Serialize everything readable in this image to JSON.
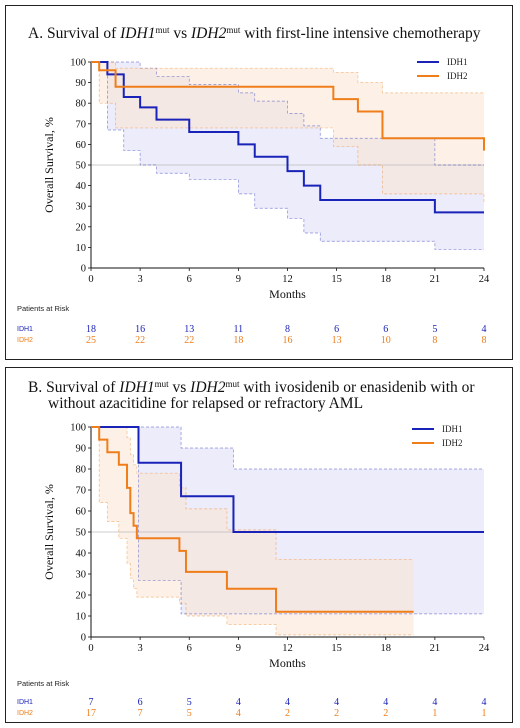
{
  "colors": {
    "idh1": "#1a23b8",
    "idh2": "#ee7d1a",
    "idh1_band": "#dcdcf5",
    "idh2_band": "#fbe6d4",
    "ref_line": "#bbbbbb"
  },
  "panels": [
    {
      "title_prefix": "A.  Survival of ",
      "title_gene1": "IDH1",
      "title_sup1": "mut",
      "title_mid": " vs ",
      "title_gene2": "IDH2",
      "title_sup2": "mut",
      "title_rest": " with first-line intensive chemotherapy",
      "title_line2": "",
      "risk_header": "Patients at Risk",
      "risk_rows": [
        {
          "name": "IDH1",
          "values": [
            "18",
            "16",
            "13",
            "11",
            "8",
            "6",
            "6",
            "5",
            "4"
          ]
        },
        {
          "name": "IDH2",
          "values": [
            "25",
            "22",
            "22",
            "18",
            "16",
            "13",
            "10",
            "8",
            "8"
          ]
        }
      ]
    },
    {
      "title_prefix": "B.   Survival of ",
      "title_gene1": "IDH1",
      "title_sup1": "mut",
      "title_mid": " vs ",
      "title_gene2": "IDH2",
      "title_sup2": "mut",
      "title_rest": " with ivosidenib or enasidenib with or",
      "title_line2": "without azacitidine for relapsed or refractory AML",
      "risk_header": "Patients at Risk",
      "risk_rows": [
        {
          "name": "IDH1",
          "values": [
            "7",
            "6",
            "5",
            "4",
            "4",
            "4",
            "4",
            "4",
            "4"
          ]
        },
        {
          "name": "IDH2",
          "values": [
            "17",
            "7",
            "5",
            "4",
            "2",
            "2",
            "2",
            "1",
            "1"
          ]
        }
      ]
    }
  ],
  "chart_data": [
    {
      "type": "line",
      "xlabel": "Months",
      "ylabel": "Overall Survival, %",
      "xlim": [
        0,
        24
      ],
      "ylim": [
        0,
        100
      ],
      "xticks": [
        "0",
        "3",
        "6",
        "9",
        "12",
        "15",
        "18",
        "21",
        "24"
      ],
      "yticks": [
        "0",
        "10",
        "20",
        "30",
        "40",
        "50",
        "60",
        "70",
        "80",
        "90",
        "100"
      ],
      "reference_line_y": 50,
      "legend": [
        "IDH1",
        "IDH2"
      ],
      "legend_position": "top-right",
      "series": [
        {
          "name": "IDH1",
          "step_x": [
            0,
            1,
            2,
            3,
            4,
            6,
            8,
            9,
            10,
            11,
            12,
            13,
            14,
            21,
            24
          ],
          "step_y": [
            100,
            94,
            83,
            78,
            72,
            66,
            66,
            60,
            54,
            54,
            47,
            40,
            33,
            27,
            27
          ],
          "ci_upper": [
            100,
            100,
            100,
            97,
            93,
            89,
            89,
            85,
            81,
            81,
            75,
            69,
            63,
            50,
            50
          ],
          "ci_lower": [
            100,
            67,
            57,
            50,
            46,
            43,
            43,
            36,
            29,
            29,
            24,
            17,
            13,
            9,
            9
          ]
        },
        {
          "name": "IDH2",
          "step_x": [
            0,
            0.5,
            1.5,
            12.5,
            14.8,
            16.3,
            17.8,
            24
          ],
          "step_y": [
            100,
            96,
            88,
            88,
            82,
            76,
            63,
            57
          ],
          "ci_upper": [
            100,
            100,
            97,
            97,
            95,
            90,
            85,
            85
          ],
          "ci_lower": [
            100,
            80,
            68,
            68,
            59,
            50,
            36,
            31
          ]
        }
      ]
    },
    {
      "type": "line",
      "xlabel": "Months",
      "ylabel": "Overall Survival, %",
      "xlim": [
        0,
        24
      ],
      "ylim": [
        0,
        100
      ],
      "xticks": [
        "0",
        "3",
        "6",
        "9",
        "12",
        "15",
        "18",
        "21",
        "24"
      ],
      "yticks": [
        "0",
        "10",
        "20",
        "30",
        "40",
        "50",
        "60",
        "70",
        "80",
        "90",
        "100"
      ],
      "reference_line_y": 50,
      "legend": [
        "IDH1",
        "IDH2"
      ],
      "legend_position": "top-right",
      "series": [
        {
          "name": "IDH1",
          "step_x": [
            0,
            2.9,
            5.5,
            8.7,
            24
          ],
          "step_y": [
            100,
            83,
            67,
            50,
            50
          ],
          "ci_upper": [
            100,
            100,
            90,
            80,
            80
          ],
          "ci_lower": [
            100,
            27,
            11,
            11,
            11
          ]
        },
        {
          "name": "IDH2",
          "step_x": [
            0,
            0.5,
            1.0,
            1.7,
            2.2,
            2.4,
            2.6,
            2.8,
            5.4,
            5.8,
            8.3,
            11.3,
            19.7
          ],
          "step_y": [
            100,
            94,
            88,
            82,
            71,
            59,
            53,
            47,
            41,
            31,
            23,
            12,
            12
          ],
          "ci_upper": [
            100,
            100,
            100,
            100,
            95,
            87,
            82,
            78,
            71,
            61,
            51,
            37,
            37
          ],
          "ci_lower": [
            100,
            64,
            55,
            47,
            35,
            28,
            23,
            19,
            16,
            10,
            6,
            1,
            1
          ]
        }
      ]
    }
  ]
}
